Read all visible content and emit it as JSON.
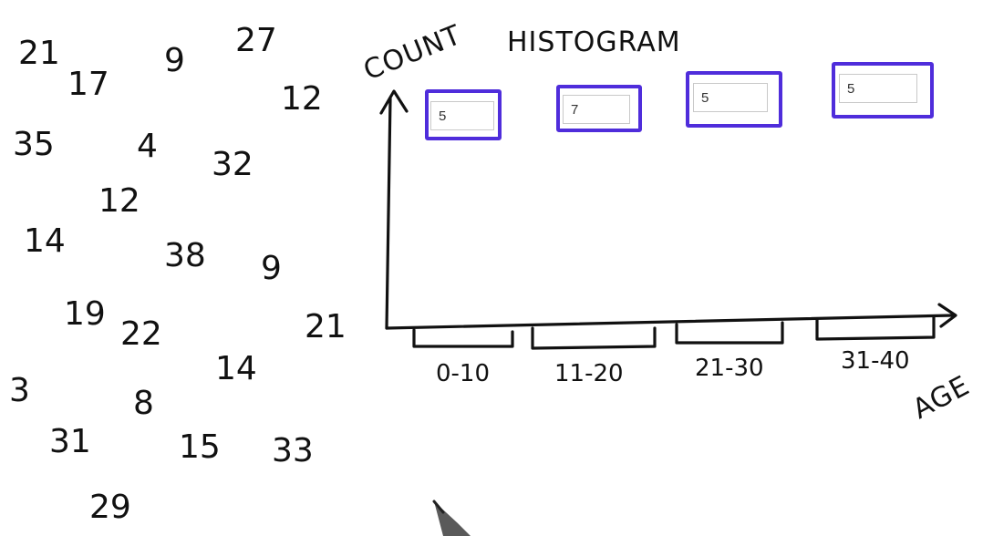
{
  "colors": {
    "ink": "#111111",
    "answer_box_border": "#4f2ddb",
    "input_border": "#c9c9c9"
  },
  "scattered_ages": [
    "21",
    "17",
    "9",
    "27",
    "12",
    "35",
    "4",
    "32",
    "12",
    "14",
    "38",
    "9",
    "19",
    "22",
    "21",
    "3",
    "8",
    "14",
    "31",
    "15",
    "33",
    "29"
  ],
  "histogram": {
    "title": "HISTOGRAM",
    "y_label": "COUNT",
    "x_label": "AGE",
    "bins": [
      "0-10",
      "11-20",
      "21-30",
      "31-40"
    ]
  },
  "answers": [
    {
      "bin": "0-10",
      "value": "5"
    },
    {
      "bin": "11-20",
      "value": "7"
    },
    {
      "bin": "21-30",
      "value": "5"
    },
    {
      "bin": "31-40",
      "value": "5"
    }
  ],
  "pen_icon": "pen-cursor-icon"
}
